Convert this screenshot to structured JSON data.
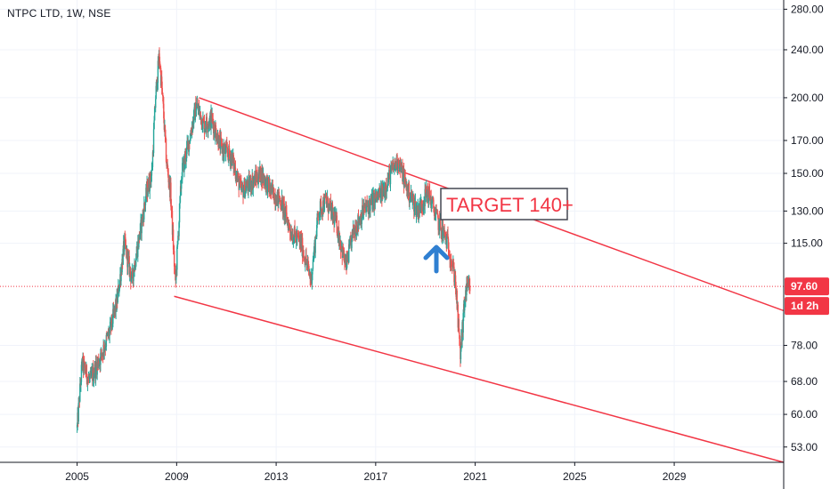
{
  "title": "NTPC LTD, 1W, NSE",
  "chart_data": {
    "type": "candlestick",
    "title": "NTPC LTD, 1W, NSE",
    "y_scale": "log",
    "ylim": [
      50,
      290
    ],
    "xlim": [
      2001.9,
      2033.4
    ],
    "y_ticks": [
      "280.00",
      "240.00",
      "200.00",
      "170.00",
      "150.00",
      "130.00",
      "115.00",
      "78.00",
      "68.00",
      "60.00",
      "53.00"
    ],
    "x_ticks": [
      "2005",
      "2009",
      "2013",
      "2017",
      "2021",
      "2025",
      "2029"
    ],
    "last_price_label": "97.60",
    "countdown_label": "1d 2h",
    "annotation": "TARGET 140+",
    "price_path": [
      [
        2005.0,
        57
      ],
      [
        2005.2,
        73
      ],
      [
        2005.5,
        68
      ],
      [
        2005.9,
        74
      ],
      [
        2006.3,
        82
      ],
      [
        2006.6,
        92
      ],
      [
        2006.9,
        115
      ],
      [
        2007.2,
        100
      ],
      [
        2007.5,
        118
      ],
      [
        2007.8,
        140
      ],
      [
        2008.0,
        150
      ],
      [
        2008.15,
        200
      ],
      [
        2008.3,
        235
      ],
      [
        2008.45,
        195
      ],
      [
        2008.6,
        155
      ],
      [
        2008.75,
        140
      ],
      [
        2008.95,
        98
      ],
      [
        2009.2,
        150
      ],
      [
        2009.5,
        170
      ],
      [
        2009.8,
        195
      ],
      [
        2010.1,
        180
      ],
      [
        2010.4,
        185
      ],
      [
        2010.8,
        165
      ],
      [
        2011.2,
        160
      ],
      [
        2011.6,
        140
      ],
      [
        2012.0,
        145
      ],
      [
        2012.4,
        150
      ],
      [
        2012.8,
        140
      ],
      [
        2013.2,
        135
      ],
      [
        2013.6,
        120
      ],
      [
        2014.0,
        115
      ],
      [
        2014.4,
        100
      ],
      [
        2014.7,
        130
      ],
      [
        2015.0,
        135
      ],
      [
        2015.4,
        125
      ],
      [
        2015.8,
        105
      ],
      [
        2016.1,
        120
      ],
      [
        2016.5,
        130
      ],
      [
        2016.9,
        135
      ],
      [
        2017.3,
        140
      ],
      [
        2017.6,
        150
      ],
      [
        2017.9,
        158
      ],
      [
        2018.3,
        140
      ],
      [
        2018.7,
        130
      ],
      [
        2019.1,
        140
      ],
      [
        2019.5,
        125
      ],
      [
        2019.9,
        115
      ],
      [
        2020.2,
        100
      ],
      [
        2020.4,
        75
      ],
      [
        2020.6,
        95
      ],
      [
        2020.8,
        97.6
      ]
    ],
    "trendlines": [
      {
        "x1": 2009.9,
        "y1": 200,
        "x2": 2033.4,
        "y2": 89
      },
      {
        "x1": 2008.9,
        "y1": 94,
        "x2": 2033.4,
        "y2": 50
      }
    ],
    "colors": {
      "up": "#26a69a",
      "down": "#ef5350",
      "trendline": "#f23645",
      "arrow": "#2f7fd1",
      "price_line": "#f23645",
      "target_border": "#434651"
    }
  }
}
